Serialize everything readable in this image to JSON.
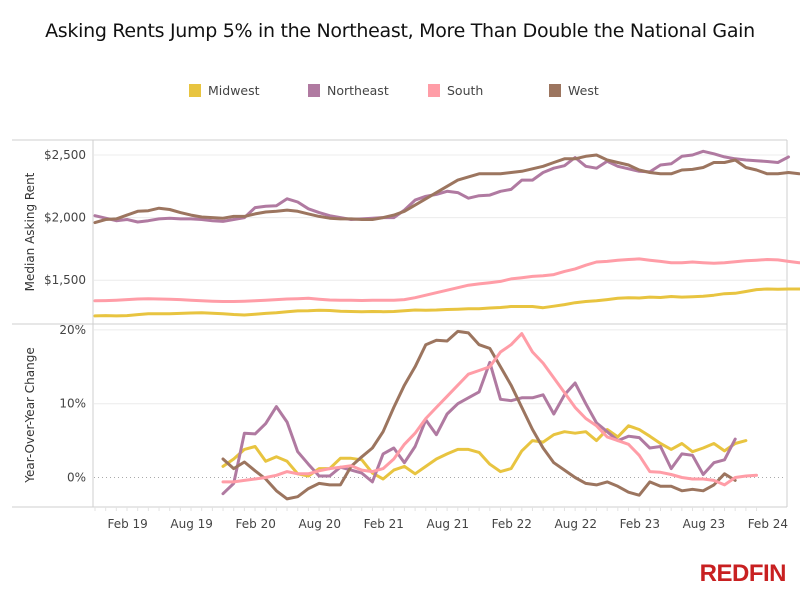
{
  "title": "Asking Rents Jump 5% in the Northeast, More Than Double the National Gain",
  "logo": "REDFIN",
  "legend": [
    {
      "name": "Midwest",
      "color": "#E8C440"
    },
    {
      "name": "Northeast",
      "color": "#B07AA1"
    },
    {
      "name": "South",
      "color": "#FF9DA7"
    },
    {
      "name": "West",
      "color": "#9C755F"
    }
  ],
  "chart_data": [
    {
      "type": "line",
      "title": "Median Asking Rent",
      "ylabel": "Median Asking Rent",
      "ylim": [
        1150,
        2620
      ],
      "yticks": [
        {
          "value": 1500,
          "label": "$1,500"
        },
        {
          "value": 2000,
          "label": "$2,000"
        },
        {
          "value": 2500,
          "label": "$2,500"
        }
      ],
      "x_start": "Jan 2019",
      "x_end": "Feb 2024",
      "grid": true,
      "series": [
        {
          "name": "Midwest",
          "start_month": 0,
          "values": [
            1215,
            1217,
            1215,
            1217,
            1225,
            1232,
            1232,
            1232,
            1235,
            1238,
            1240,
            1236,
            1232,
            1226,
            1222,
            1228,
            1235,
            1240,
            1248,
            1255,
            1256,
            1260,
            1258,
            1252,
            1250,
            1248,
            1250,
            1248,
            1250,
            1256,
            1262,
            1260,
            1262,
            1266,
            1268,
            1272,
            1272,
            1278,
            1282,
            1290,
            1290,
            1290,
            1280,
            1292,
            1305,
            1320,
            1330,
            1335,
            1345,
            1355,
            1360,
            1358,
            1365,
            1362,
            1370,
            1365,
            1368,
            1372,
            1380,
            1392,
            1395,
            1410,
            1425,
            1430,
            1428,
            1430,
            1430,
            1432,
            1435
          ]
        },
        {
          "name": "Northeast",
          "start_month": 0,
          "values": [
            2015,
            1995,
            1975,
            1985,
            1965,
            1975,
            1990,
            1995,
            1990,
            1990,
            1985,
            1975,
            1970,
            1985,
            2000,
            2080,
            2090,
            2095,
            2150,
            2125,
            2070,
            2040,
            2015,
            2000,
            1985,
            1990,
            1995,
            2000,
            2000,
            2060,
            2140,
            2170,
            2185,
            2210,
            2200,
            2155,
            2175,
            2180,
            2210,
            2225,
            2300,
            2300,
            2360,
            2395,
            2415,
            2480,
            2410,
            2395,
            2450,
            2410,
            2390,
            2370,
            2365,
            2420,
            2430,
            2490,
            2500,
            2530,
            2510,
            2485,
            2470,
            2460,
            2455,
            2448,
            2440,
            2485
          ]
        },
        {
          "name": "West",
          "start_month": 0,
          "values": [
            1960,
            1985,
            1990,
            2020,
            2050,
            2055,
            2075,
            2065,
            2040,
            2020,
            2005,
            2000,
            1995,
            2010,
            2010,
            2030,
            2045,
            2050,
            2060,
            2050,
            2030,
            2010,
            1995,
            1990,
            1990,
            1985,
            1985,
            2000,
            2020,
            2050,
            2100,
            2150,
            2200,
            2250,
            2300,
            2325,
            2350,
            2350,
            2350,
            2360,
            2370,
            2390,
            2410,
            2440,
            2470,
            2470,
            2490,
            2500,
            2460,
            2440,
            2420,
            2380,
            2360,
            2350,
            2350,
            2380,
            2385,
            2400,
            2440,
            2440,
            2460,
            2400,
            2380,
            2350,
            2350,
            2360,
            2350
          ]
        },
        {
          "name": "South",
          "start_month": 0,
          "values": [
            1335,
            1337,
            1340,
            1345,
            1350,
            1352,
            1350,
            1348,
            1345,
            1340,
            1336,
            1332,
            1330,
            1330,
            1332,
            1335,
            1340,
            1345,
            1350,
            1352,
            1355,
            1348,
            1342,
            1340,
            1340,
            1338,
            1340,
            1340,
            1340,
            1345,
            1360,
            1380,
            1400,
            1420,
            1440,
            1460,
            1470,
            1480,
            1490,
            1510,
            1520,
            1530,
            1535,
            1545,
            1570,
            1590,
            1620,
            1645,
            1650,
            1660,
            1665,
            1670,
            1660,
            1650,
            1640,
            1640,
            1645,
            1640,
            1635,
            1640,
            1648,
            1655,
            1660,
            1665,
            1662,
            1650,
            1640,
            1635,
            1632,
            1630,
            1632,
            1632
          ]
        }
      ]
    },
    {
      "type": "line",
      "title": "Year-Over-Year Change",
      "ylabel": "Year-Over-Year Change",
      "ylim": [
        -4,
        20.8
      ],
      "yticks": [
        {
          "value": 0,
          "label": "0%"
        },
        {
          "value": 10,
          "label": "10%"
        },
        {
          "value": 20,
          "label": "20%"
        }
      ],
      "xticks": [
        "Feb 19",
        "Aug 19",
        "Feb 20",
        "Aug 20",
        "Feb 21",
        "Aug 21",
        "Feb 22",
        "Aug 22",
        "Feb 23",
        "Aug 23",
        "Feb 24"
      ],
      "zero_line": "dotted",
      "series": [
        {
          "name": "Midwest",
          "start_month": 12,
          "values": [
            1.5,
            2.5,
            3.8,
            4.2,
            2.2,
            2.8,
            2.2,
            0.5,
            0.2,
            1.2,
            1.2,
            2.6,
            2.6,
            2.4,
            0.6,
            -0.2,
            1.0,
            1.5,
            0.5,
            1.5,
            2.5,
            3.2,
            3.8,
            3.8,
            3.4,
            1.8,
            0.8,
            1.2,
            3.6,
            5.0,
            4.8,
            5.8,
            6.2,
            6.0,
            6.2,
            5.0,
            6.5,
            5.5,
            7.0,
            6.5,
            5.6,
            4.6,
            3.8,
            4.6,
            3.5,
            4.0,
            4.6,
            3.6,
            4.6,
            5.0
          ]
        },
        {
          "name": "Northeast",
          "start_month": 12,
          "values": [
            -2.2,
            -0.8,
            6.0,
            5.9,
            7.3,
            9.6,
            7.5,
            3.5,
            1.8,
            0.2,
            0.2,
            1.4,
            1.0,
            0.6,
            -0.6,
            3.2,
            4.0,
            2.0,
            4.2,
            7.8,
            5.8,
            8.6,
            10.0,
            10.8,
            11.6,
            15.6,
            10.6,
            10.4,
            10.8,
            10.8,
            11.2,
            8.6,
            11.2,
            12.8,
            10.0,
            7.4,
            6.2,
            5.0,
            5.6,
            5.4,
            4.0,
            4.2,
            1.2,
            3.2,
            3.0,
            0.4,
            2.0,
            2.4,
            5.2
          ]
        },
        {
          "name": "West",
          "start_month": 12,
          "values": [
            2.5,
            1.2,
            2.1,
            0.9,
            -0.2,
            -1.8,
            -2.9,
            -2.6,
            -1.5,
            -0.8,
            -1.0,
            -1.0,
            1.5,
            2.8,
            4.0,
            6.2,
            9.5,
            12.5,
            15.0,
            18.0,
            18.6,
            18.5,
            19.8,
            19.6,
            18.0,
            17.5,
            15.0,
            12.5,
            9.5,
            6.5,
            4.0,
            2.0,
            1.0,
            0.0,
            -0.8,
            -1.0,
            -0.6,
            -1.2,
            -2.0,
            -2.4,
            -0.6,
            -1.2,
            -1.2,
            -1.8,
            -1.6,
            -1.8,
            -1.0,
            0.5,
            -0.4
          ]
        },
        {
          "name": "South",
          "start_month": 12,
          "values": [
            -0.6,
            -0.6,
            -0.4,
            -0.2,
            0.0,
            0.3,
            0.8,
            0.5,
            0.5,
            0.9,
            1.2,
            1.4,
            1.6,
            1.0,
            0.8,
            1.2,
            2.5,
            4.5,
            6.0,
            8.0,
            9.5,
            11.0,
            12.5,
            14.0,
            14.5,
            15.0,
            17.0,
            18.0,
            19.5,
            17.0,
            15.5,
            13.5,
            11.5,
            9.5,
            8.0,
            7.0,
            5.5,
            5.0,
            4.5,
            3.0,
            0.8,
            0.7,
            0.4,
            0.0,
            -0.2,
            -0.2,
            -0.4,
            -1.0,
            0.0,
            0.2,
            0.3
          ]
        }
      ]
    }
  ]
}
